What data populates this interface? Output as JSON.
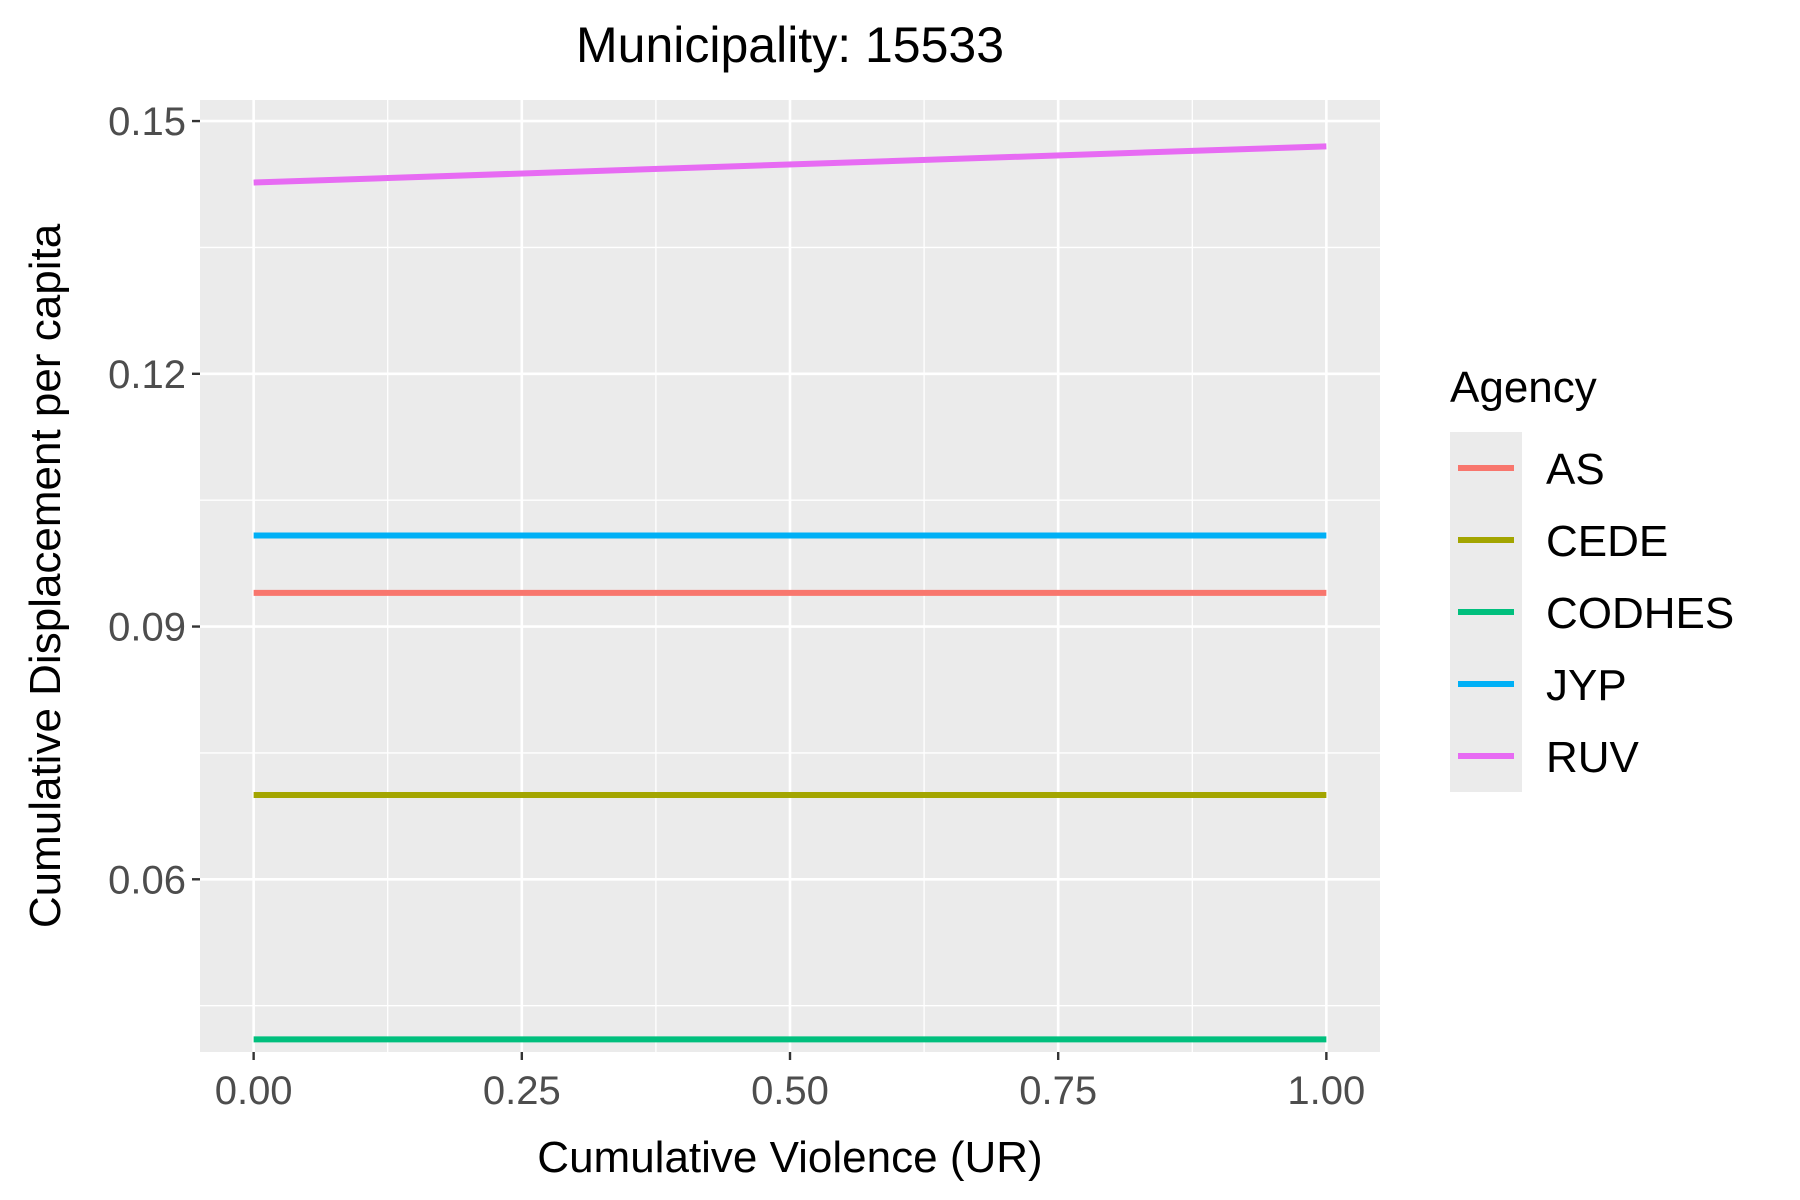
{
  "chart_data": {
    "type": "line",
    "title": "Municipality: 15533",
    "xlabel": "Cumulative Violence (UR)",
    "ylabel": "Cumulative Displacement per capita",
    "xlim": [
      -0.05,
      1.05
    ],
    "ylim": [
      0.0395,
      0.1525
    ],
    "x_ticks": [
      0.0,
      0.25,
      0.5,
      0.75,
      1.0
    ],
    "x_tick_labels": [
      "0.00",
      "0.25",
      "0.50",
      "0.75",
      "1.00"
    ],
    "y_ticks": [
      0.06,
      0.09,
      0.12,
      0.15
    ],
    "y_tick_labels": [
      "0.06",
      "0.09",
      "0.12",
      "0.15"
    ],
    "grid": true,
    "background": "#ebebeb",
    "legend": {
      "title": "Agency",
      "placement": "right"
    },
    "series": [
      {
        "name": "AS",
        "color": "#f8766d",
        "x": [
          0.0,
          1.0
        ],
        "y": [
          0.094,
          0.094
        ]
      },
      {
        "name": "CEDE",
        "color": "#a3a500",
        "x": [
          0.0,
          1.0
        ],
        "y": [
          0.07,
          0.07
        ]
      },
      {
        "name": "CODHES",
        "color": "#00bf7d",
        "x": [
          0.0,
          1.0
        ],
        "y": [
          0.041,
          0.041
        ]
      },
      {
        "name": "JYP",
        "color": "#00b0f6",
        "x": [
          0.0,
          1.0
        ],
        "y": [
          0.1008,
          0.1008
        ]
      },
      {
        "name": "RUV",
        "color": "#e76bf3",
        "x": [
          0.0,
          1.0
        ],
        "y": [
          0.1427,
          0.147
        ]
      }
    ]
  }
}
